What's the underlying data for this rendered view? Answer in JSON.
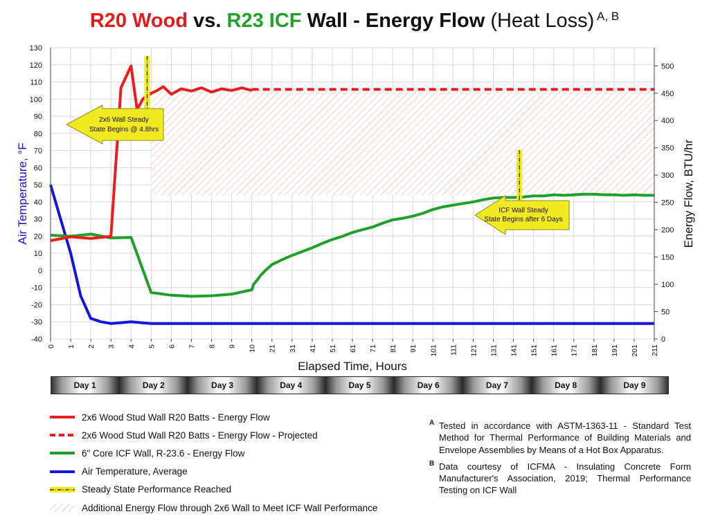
{
  "title": {
    "part1": "R20 Wood",
    "part2": " vs. ",
    "part3": "R23 ICF",
    "part4": " Wall - Energy Flow ",
    "part5": "(Heat Loss)",
    "sup": " A, B"
  },
  "chart_data": {
    "type": "line",
    "xlabel": "Elapsed Time, Hours",
    "ylabel": "Air Temperature, °F",
    "y2label": "Energy Flow, BTU/hr",
    "xlim": [
      0,
      211
    ],
    "ylim": [
      -40,
      130
    ],
    "y2lim": [
      0,
      533.3
    ],
    "x_ticks": [
      0,
      1,
      2,
      3,
      4,
      5,
      6,
      7,
      8,
      9,
      10,
      21,
      31,
      41,
      51,
      61,
      71,
      81,
      91,
      101,
      111,
      121,
      131,
      141,
      151,
      161,
      171,
      181,
      191,
      201,
      211
    ],
    "y_ticks": [
      -40,
      -30,
      -20,
      -10,
      0,
      10,
      20,
      30,
      40,
      50,
      60,
      70,
      80,
      90,
      100,
      110,
      120,
      130
    ],
    "y2_ticks": [
      0,
      50,
      100,
      150,
      200,
      250,
      300,
      350,
      400,
      450,
      500
    ],
    "grid": true,
    "colors": {
      "wood": "#ee1c1c",
      "icf": "#1fa02a",
      "air": "#1515e0",
      "steady": "#f2ea20",
      "hatch": "#f0a0a0"
    },
    "series": [
      {
        "name": "2x6 Wood Stud Wall R20 Batts - Energy Flow",
        "axis": "right",
        "x": [
          0,
          1,
          2,
          3,
          3.5,
          4,
          4.3,
          4.6,
          5,
          5.3,
          5.6,
          6,
          6.5,
          7,
          7.5,
          8,
          8.5,
          9,
          9.5,
          10
        ],
        "y": [
          180,
          187,
          184,
          188,
          460,
          500,
          420,
          440,
          450,
          455,
          462,
          448,
          458,
          454,
          460,
          452,
          458,
          455,
          460,
          455
        ]
      },
      {
        "name": "2x6 Wood Stud Wall R20 Batts - Energy Flow - Projected",
        "axis": "right",
        "x": [
          10,
          211
        ],
        "y": [
          457,
          457
        ]
      },
      {
        "name": "6\" Core ICF Wall, R-23.6 - Energy Flow",
        "axis": "right",
        "x": [
          0,
          1,
          2,
          3,
          4,
          5,
          6,
          7,
          8,
          9,
          10,
          11,
          13,
          15,
          17,
          19,
          21,
          26,
          31,
          36,
          41,
          46,
          51,
          56,
          61,
          66,
          71,
          76,
          81,
          86,
          91,
          96,
          101,
          106,
          111,
          116,
          121,
          126,
          131,
          136,
          141,
          146,
          151,
          156,
          161,
          166,
          171,
          176,
          181,
          186,
          191,
          196,
          201,
          206,
          211
        ],
        "y": [
          190,
          188,
          192,
          185,
          186,
          85,
          80,
          78,
          79,
          82,
          90,
          100,
          108,
          117,
          124,
          130,
          136,
          145,
          153,
          160,
          167,
          175,
          182,
          188,
          195,
          200,
          205,
          212,
          218,
          221,
          225,
          230,
          237,
          242,
          245,
          248,
          251,
          255,
          258,
          259,
          259,
          260,
          262,
          262,
          264,
          263,
          264,
          265,
          265,
          264,
          264,
          263,
          264,
          263,
          263
        ]
      },
      {
        "name": "Air Temperature, Average",
        "axis": "left",
        "x": [
          0,
          0.5,
          1,
          1.5,
          2,
          2.5,
          3,
          4,
          5,
          10,
          50,
          100,
          150,
          211
        ],
        "y": [
          50,
          30,
          10,
          -15,
          -28,
          -30,
          -31,
          -30,
          -31,
          -31,
          -31,
          -31,
          -31,
          -31
        ]
      }
    ],
    "steady_state": [
      {
        "x": 4.8,
        "label": "2x6 Wall Steady State Begins @ 4.8hrs"
      },
      {
        "x": 144,
        "label": "ICF Wall Steady State Begins after 6 Days"
      }
    ]
  },
  "days": [
    "Day 1",
    "Day 2",
    "Day 3",
    "Day 4",
    "Day 5",
    "Day 6",
    "Day 7",
    "Day 8",
    "Day 9"
  ],
  "callouts": {
    "wood": {
      "line1": "2x6 Wall Steady",
      "line2": "State Begins @ 4.8hrs"
    },
    "icf": {
      "line1": "ICF Wall Steady",
      "line2": "State Begins after 6 Days"
    }
  },
  "legend": [
    {
      "key": "wood",
      "label": "2x6 Wood Stud Wall R20 Batts - Energy Flow"
    },
    {
      "key": "wood-proj",
      "label": "2x6 Wood Stud Wall R20 Batts - Energy Flow - Projected"
    },
    {
      "key": "icf",
      "label": "6\" Core ICF Wall, R-23.6 - Energy Flow"
    },
    {
      "key": "air",
      "label": "Air Temperature, Average"
    },
    {
      "key": "steady",
      "label": "Steady State Performance Reached"
    },
    {
      "key": "hatch",
      "label": "Additional Energy Flow through 2x6 Wall to Meet ICF Wall Performance"
    }
  ],
  "notes": [
    {
      "mark": "A",
      "text": "Tested in accordance with ASTM-1363-11 - Standard Test Method for Thermal Performance of Building Materials and Envelope Assemblies by Means of a Hot Box Apparatus."
    },
    {
      "mark": "B",
      "text": "Data courtesy of ICFMA - Insulating Concrete Form Manufacturer's Association, 2019; Thermal Performance Testing on ICF Wall"
    }
  ]
}
